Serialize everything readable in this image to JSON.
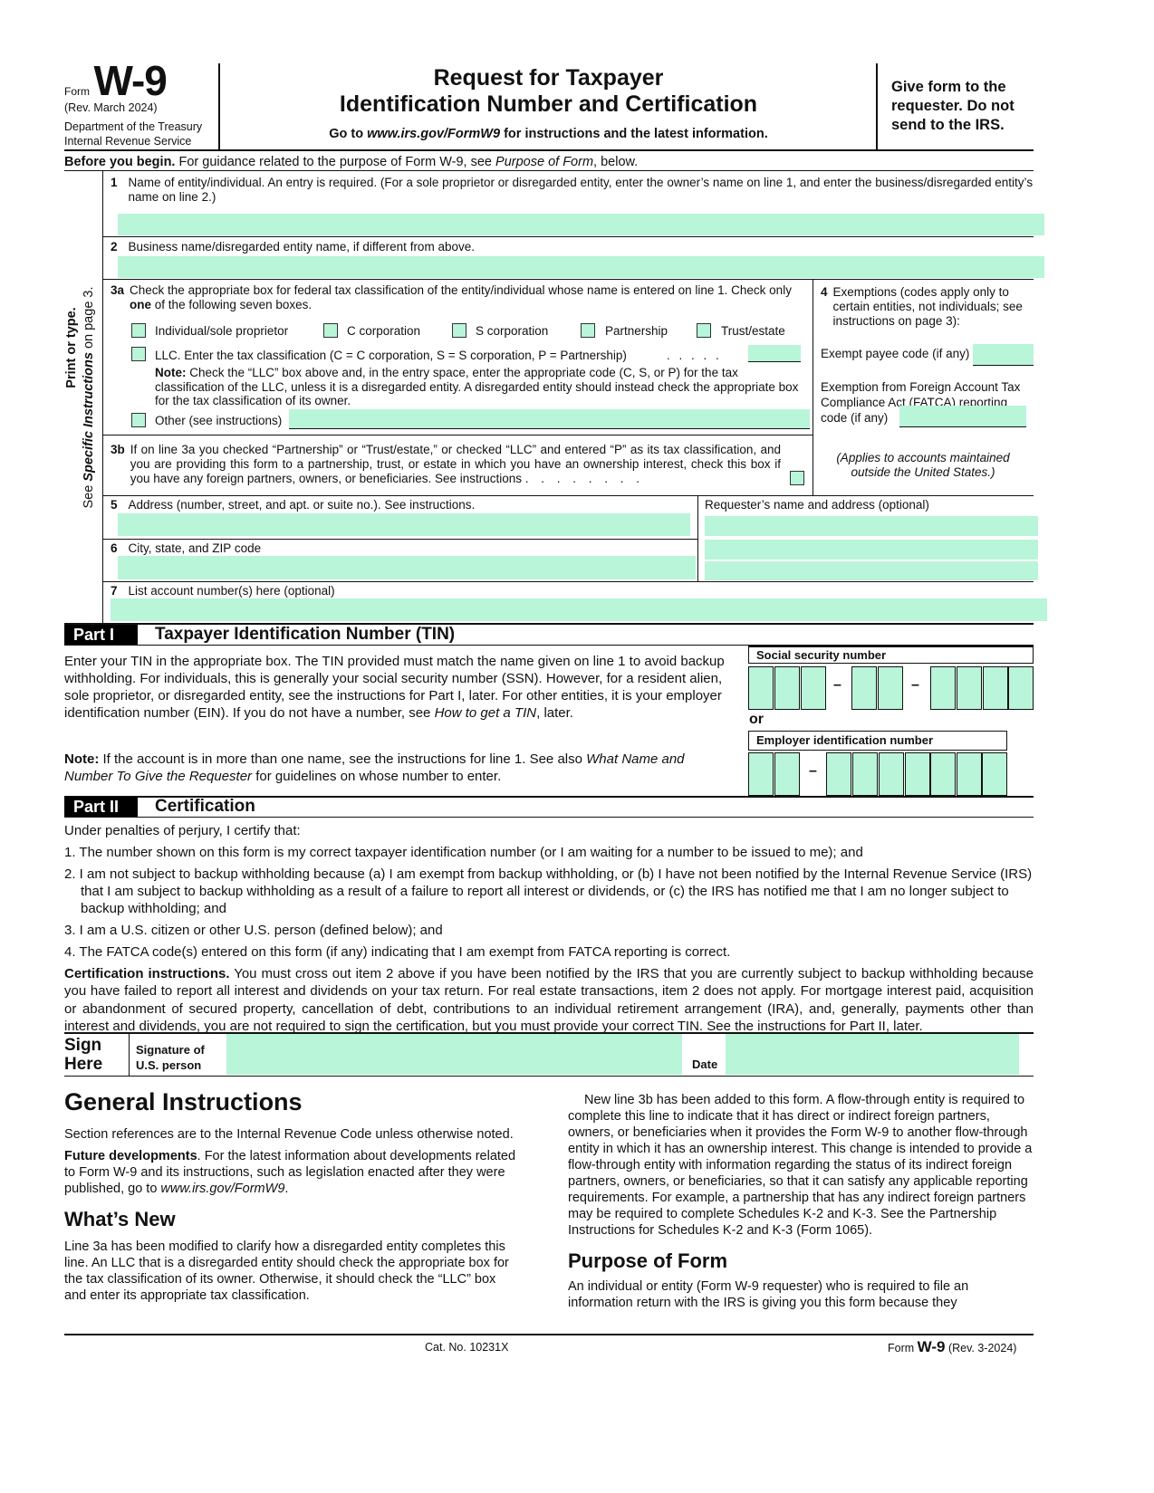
{
  "header": {
    "form_word": "Form",
    "form_number": "W-9",
    "revision": "(Rev. March 2024)",
    "dept": "Department of the Treasury",
    "irs": "Internal Revenue Service",
    "title_line1": "Request for Taxpayer",
    "title_line2": "Identification Number and Certification",
    "goto_pre": "Go to ",
    "goto_url": "www.irs.gov/FormW9",
    "goto_post": " for instructions and the latest information.",
    "give_form": "Give form to the requester. Do not send to the IRS."
  },
  "before": {
    "bold": "Before you begin.",
    "text": " For guidance related to the purpose of Form W-9, see ",
    "italic": "Purpose of Form",
    "tail": ", below."
  },
  "sidebar": {
    "print": "Print or type.",
    "see": "See ",
    "specific": "Specific Instructions",
    "page": " on page 3."
  },
  "line1": {
    "num": "1",
    "label": "Name of entity/individual. An entry is required. (For a sole proprietor or disregarded entity, enter the owner’s name on line 1, and enter the business/disregarded entity’s name on line 2.)",
    "value": ""
  },
  "line2": {
    "num": "2",
    "label": "Business name/disregarded entity name, if different from above.",
    "value": ""
  },
  "line3a": {
    "num": "3a",
    "label_pre": "Check the appropriate box for federal tax classification of the entity/individual whose name is entered on line 1. Check only ",
    "label_bold": "one",
    "label_post": " of the following seven boxes.",
    "options": [
      "Individual/sole proprietor",
      "C corporation",
      "S corporation",
      "Partnership",
      "Trust/estate"
    ],
    "llc": "LLC. Enter the tax classification (C = C corporation, S = S corporation, P = Partnership)",
    "dots": ". . . . .",
    "note_bold": "Note:",
    "note": " Check the “LLC” box above and, in the entry space, enter the appropriate code (C, S, or P) for the tax classification of the LLC, unless it is a disregarded entity. A disregarded entity should instead check the appropriate box for the tax classification of its owner.",
    "other": "Other (see instructions)"
  },
  "line3b": {
    "num": "3b",
    "label": "If on line 3a you checked “Partnership” or “Trust/estate,” or checked “LLC” and entered “P” as its tax classification, and you are providing this form to a partnership, trust, or estate in which you have an ownership interest, check this box if you have any foreign partners, owners, or beneficiaries. See instructions",
    "dots": ". . . . . . . ."
  },
  "line4": {
    "num": "4",
    "label": "Exemptions (codes apply only to certain entities, not individuals; see instructions on page 3):",
    "exempt_payee": "Exempt payee code (if any)",
    "fatca": "Exemption from Foreign Account Tax Compliance Act (FATCA) reporting code (if any)",
    "applies": "(Applies to accounts maintained outside the United States.)"
  },
  "line5": {
    "num": "5",
    "label": "Address (number, street, and apt. or suite no.). See instructions."
  },
  "requester": {
    "label": "Requester’s name and address (optional)"
  },
  "line6": {
    "num": "6",
    "label": "City, state, and ZIP code"
  },
  "line7": {
    "num": "7",
    "label": "List account number(s) here (optional)"
  },
  "part1": {
    "tag": "Part I",
    "title": "Taxpayer Identification Number (TIN)",
    "text_pre": "Enter your TIN in the appropriate box. The TIN provided must match the name given on line 1 to avoid backup withholding. For individuals, this is generally your social security number (SSN). However, for a resident alien, sole proprietor, or disregarded entity, see the instructions for Part I, later. For other entities, it is your employer identification number (EIN). If you do not have a number, see ",
    "text_italic": "How to get a TIN",
    "text_post": ", later.",
    "note_bold": "Note:",
    "note_pre": " If the account is in more than one name, see the instructions for line 1. See also ",
    "note_italic": "What Name and Number To Give the Requester",
    "note_post": " for guidelines on whose number to enter.",
    "ssn_label": "Social security number",
    "or": "or",
    "ein_label": "Employer identification number",
    "dash": "–"
  },
  "part2": {
    "tag": "Part II",
    "title": "Certification",
    "intro": "Under penalties of perjury, I certify that:",
    "items": [
      "1. The number shown on this form is my correct taxpayer identification number (or I am waiting for a number to be issued to me); and",
      "2. I am not subject to backup withholding because (a) I am exempt from backup withholding, or (b) I have not been notified by the Internal Revenue Service (IRS) that I am subject to backup withholding as a result of a failure to report all interest or dividends, or (c) the IRS has notified me that I am no longer subject to backup withholding; and",
      "3. I am a U.S. citizen or other U.S. person (defined below); and",
      "4. The FATCA code(s) entered on this form (if any) indicating that I am exempt from FATCA reporting is correct."
    ],
    "cert_bold": "Certification instructions.",
    "cert_text": " You must cross out item 2 above if you have been notified by the IRS that you are currently subject to backup withholding because you have failed to report all interest and dividends on your tax return. For real estate transactions, item 2 does not apply. For mortgage interest paid, acquisition or abandonment of secured property, cancellation of debt, contributions to an individual retirement arrangement (IRA), and, generally, payments other than interest and dividends, you are not required to sign the certification, but you must provide your correct TIN. See the instructions for Part II, later."
  },
  "sign": {
    "sign": "Sign",
    "here": "Here",
    "sig_label1": "Signature of",
    "sig_label2": "U.S. person",
    "date": "Date"
  },
  "general": {
    "title": "General Instructions",
    "p1": "Section references are to the Internal Revenue Code unless otherwise noted.",
    "fd_bold": "Future developments",
    "fd_text": ". For the latest information about developments related to Form W-9 and its instructions, such as legislation enacted after they were published, go to ",
    "fd_url": "www.irs.gov/FormW9",
    "fd_end": ".",
    "whats_new": "What’s New",
    "wn_p": "Line 3a has been modified to clarify how a disregarded entity completes this line. An LLC that is a disregarded entity should check the appropriate box for the tax classification of its owner. Otherwise, it should check the “LLC” box and enter its appropriate tax classification.",
    "right_p": "New line 3b has been added to this form. A flow-through entity is required to complete this line to indicate that it has direct or indirect foreign partners, owners, or beneficiaries when it provides the Form W-9 to another flow-through entity in which it has an ownership interest. This change is intended to provide a flow-through entity with information regarding the status of its indirect foreign partners, owners, or beneficiaries, so that it can satisfy any applicable reporting requirements. For example, a partnership that has any indirect foreign partners may be required to complete Schedules K-2 and K-3. See the Partnership Instructions for Schedules K-2 and K-3 (Form 1065).",
    "purpose": "Purpose of Form",
    "purpose_p": "An individual or entity (Form W-9 requester) who is required to file an information return with the IRS is giving you this form because they"
  },
  "footer": {
    "cat": "Cat. No. 10231X",
    "form": "Form ",
    "w9": "W-9",
    "rev": " (Rev. 3-2024)"
  },
  "colors": {
    "fill": "#b9f5d9",
    "ink": "#111111"
  }
}
